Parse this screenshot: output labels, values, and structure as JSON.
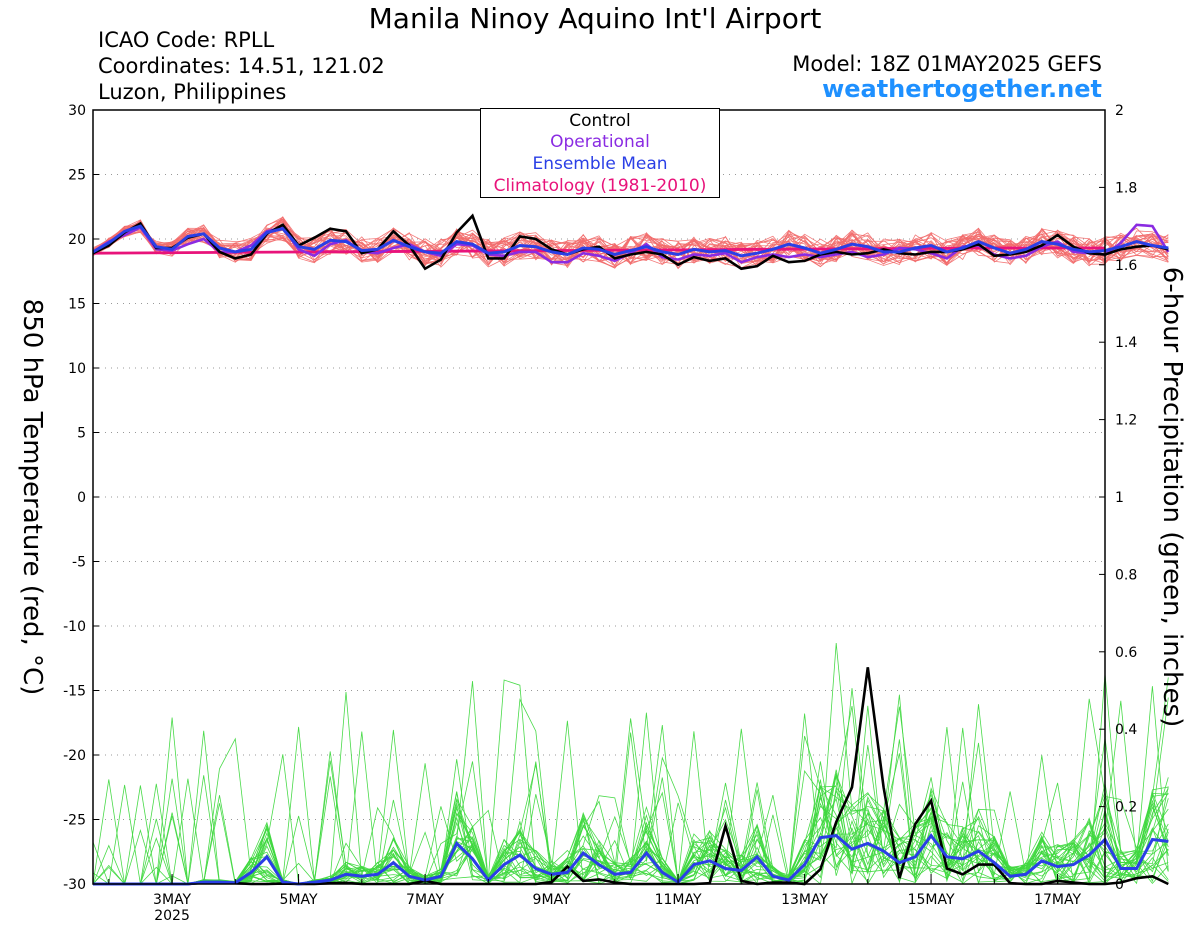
{
  "header": {
    "title": "Manila Ninoy Aquino Int'l Airport",
    "icao": "ICAO Code: RPLL",
    "coordinates": "Coordinates: 14.51, 121.02",
    "location": "Luzon, Philippines",
    "model": "Model: 18Z 01MAY2025 GEFS",
    "site": "weathertogether.net"
  },
  "legend": {
    "items": [
      {
        "label": "Control",
        "color": "#000000"
      },
      {
        "label": "Operational",
        "color": "#8a2be2"
      },
      {
        "label": "Ensemble Mean",
        "color": "#2a3fe6"
      },
      {
        "label": "Climatology (1981-2010)",
        "color": "#e8137a"
      }
    ]
  },
  "colors": {
    "temperature_members": "#f26c6c",
    "precip_members": "#3fd83f",
    "control": "#000000",
    "operational": "#8a2be2",
    "mean": "#2a3fe6",
    "climatology": "#e8137a",
    "site": "#1e90ff"
  },
  "chart_data": {
    "type": "line",
    "x_start": "2025-05-01T18:00Z",
    "x_step_hours": 6,
    "xlim_days": [
      1.75,
      17.75
    ],
    "x_ticks": [
      {
        "day": 3,
        "label": "3MAY",
        "sub": "2025"
      },
      {
        "day": 5,
        "label": "5MAY"
      },
      {
        "day": 7,
        "label": "7MAY"
      },
      {
        "day": 9,
        "label": "9MAY"
      },
      {
        "day": 11,
        "label": "11MAY"
      },
      {
        "day": 13,
        "label": "13MAY"
      },
      {
        "day": 15,
        "label": "15MAY"
      },
      {
        "day": 17,
        "label": "17MAY"
      }
    ],
    "left_axis": {
      "label": "850 hPa Temperature (red, °C)",
      "ylim": [
        -30,
        30
      ],
      "ticks": [
        30,
        25,
        20,
        15,
        10,
        5,
        0,
        -5,
        -10,
        -15,
        -20,
        -25,
        -30
      ]
    },
    "right_axis": {
      "label": "6-hour Precipitation (green, inches)",
      "ylim": [
        0,
        2
      ],
      "ticks": [
        2,
        1.8,
        1.6,
        1.4,
        1.2,
        1,
        0.8,
        0.6,
        0.4,
        0.2,
        0
      ]
    },
    "grid": "horizontal-dotted",
    "series": [
      {
        "name": "Control",
        "axis": "left",
        "values": [
          18.9,
          19.5,
          20.5,
          21.2,
          19.3,
          19.3,
          20.1,
          20.4,
          19.0,
          18.5,
          18.8,
          20.4,
          21.1,
          19.5,
          20.1,
          20.8,
          20.6,
          18.9,
          19.2,
          20.6,
          19.5,
          17.7,
          18.4,
          20.5,
          21.8,
          18.5,
          18.5,
          20.2,
          20.0,
          19.2,
          18.8,
          19.2,
          19.4,
          18.5,
          18.8,
          19.0,
          18.8,
          18.0,
          18.6,
          18.3,
          18.5,
          17.7,
          17.9,
          18.7,
          18.2,
          18.3,
          18.8,
          19.0,
          18.8,
          18.9,
          19.2,
          18.9,
          18.8,
          19.0,
          19.0,
          19.2,
          19.6,
          18.7,
          18.8,
          19.0,
          19.5,
          20.3,
          19.4,
          18.9,
          18.8,
          19.2,
          19.4,
          19.5,
          19.2
        ]
      },
      {
        "name": "Operational",
        "axis": "left",
        "values": [
          19.0,
          19.8,
          20.3,
          20.9,
          19.2,
          19.1,
          19.6,
          20.0,
          19.0,
          19.0,
          19.5,
          20.6,
          20.9,
          19.2,
          18.7,
          19.6,
          19.9,
          19.0,
          18.9,
          19.3,
          19.6,
          19.0,
          18.7,
          19.6,
          19.5,
          18.8,
          18.7,
          19.0,
          19.0,
          18.2,
          18.2,
          18.9,
          18.7,
          18.3,
          18.9,
          19.6,
          18.6,
          18.4,
          18.8,
          18.7,
          18.9,
          18.2,
          18.6,
          18.8,
          18.6,
          18.8,
          18.6,
          18.8,
          19.0,
          18.6,
          18.8,
          19.3,
          19.2,
          18.9,
          18.5,
          19.4,
          19.5,
          18.8,
          18.5,
          18.7,
          19.4,
          19.8,
          19.0,
          18.9,
          18.8,
          19.7,
          21.1,
          21.0,
          19.0
        ]
      },
      {
        "name": "Ensemble Mean",
        "axis": "left",
        "values": [
          19.0,
          19.7,
          20.6,
          21.0,
          19.4,
          19.2,
          20.2,
          20.4,
          19.3,
          19.0,
          19.2,
          20.5,
          20.8,
          19.4,
          19.2,
          19.9,
          19.8,
          19.1,
          19.2,
          19.9,
          19.4,
          19.0,
          18.9,
          19.8,
          19.6,
          18.9,
          19.0,
          19.5,
          19.4,
          19.0,
          18.8,
          19.3,
          19.2,
          18.8,
          19.1,
          19.4,
          19.0,
          18.8,
          19.2,
          19.0,
          19.1,
          18.7,
          18.9,
          19.2,
          19.6,
          19.3,
          18.9,
          19.2,
          19.6,
          19.4,
          19.0,
          19.0,
          19.3,
          19.5,
          19.0,
          19.3,
          19.8,
          19.3,
          18.9,
          19.2,
          19.8,
          19.6,
          19.2,
          19.0,
          19.1,
          19.4,
          19.8,
          19.5,
          19.3
        ]
      },
      {
        "name": "Climatology (1981-2010)",
        "axis": "left",
        "values": [
          18.9,
          18.95,
          19.0,
          19.05,
          19.1,
          19.15,
          19.2,
          19.25,
          19.3,
          19.3
        ]
      },
      {
        "name": "Control",
        "axis": "right",
        "values": [
          0,
          0,
          0,
          0,
          0,
          0,
          0,
          0.003,
          0.004,
          0.002,
          0,
          0,
          0.001,
          0,
          0,
          0.002,
          0.003,
          0,
          0,
          0,
          0,
          0.008,
          0,
          0,
          0,
          0,
          0,
          0,
          0,
          0.005,
          0.045,
          0.008,
          0.012,
          0.004,
          0,
          0,
          0,
          0,
          0,
          0.002,
          0.15,
          0.008,
          0,
          0.004,
          0.004,
          0,
          0.038,
          0.16,
          0.25,
          0.56,
          0.25,
          0.015,
          0.155,
          0.215,
          0.04,
          0.025,
          0.05,
          0.05,
          0.002,
          0,
          0,
          0.008,
          0.004,
          0,
          0,
          0.004,
          0.015,
          0.02,
          0
        ]
      },
      {
        "name": "Ensemble Mean",
        "axis": "right",
        "values": [
          0,
          0,
          0,
          0,
          0,
          0,
          0,
          0.005,
          0.005,
          0.003,
          0.03,
          0.07,
          0.005,
          0,
          0.005,
          0.01,
          0.025,
          0.02,
          0.025,
          0.055,
          0.02,
          0.01,
          0.02,
          0.105,
          0.065,
          0.01,
          0.05,
          0.075,
          0.04,
          0.025,
          0.03,
          0.08,
          0.05,
          0.025,
          0.03,
          0.08,
          0.03,
          0.005,
          0.05,
          0.06,
          0.04,
          0.035,
          0.07,
          0.02,
          0.01,
          0.05,
          0.12,
          0.125,
          0.09,
          0.105,
          0.085,
          0.055,
          0.07,
          0.125,
          0.07,
          0.065,
          0.085,
          0.055,
          0.02,
          0.025,
          0.06,
          0.045,
          0.05,
          0.075,
          0.115,
          0.04,
          0.04,
          0.115,
          0.11
        ]
      }
    ]
  }
}
